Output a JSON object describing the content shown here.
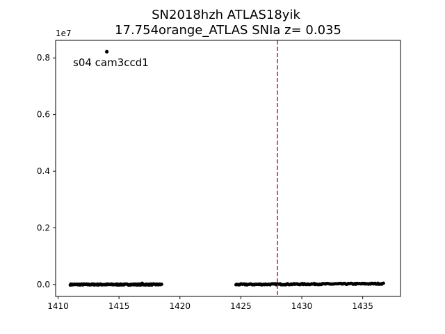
{
  "chart_data": {
    "type": "scatter",
    "title_line1": "SN2018hzh  ATLAS18yik",
    "title_line2": "17.754orange_ATLAS SNIa z= 0.035",
    "xlabel": "",
    "ylabel": "",
    "y_multiplier_label": "1e7",
    "xlim": [
      1409.8,
      1438.1
    ],
    "ylim": [
      -0.042,
      0.862
    ],
    "x_ticks": [
      1410,
      1415,
      1420,
      1425,
      1430,
      1435
    ],
    "x_tick_labels": [
      "1410",
      "1415",
      "1420",
      "1425",
      "1430",
      "1435"
    ],
    "y_ticks": [
      0.0,
      0.2,
      0.4,
      0.6,
      0.8
    ],
    "y_tick_labels": [
      "0.0",
      "0.2",
      "0.4",
      "0.6",
      "0.8"
    ],
    "annotation": "s04 cam3ccd1",
    "vline": {
      "x": 1428.0,
      "color": "#d62728",
      "style": "dashed"
    },
    "point_color": "#000000",
    "grid": false,
    "segments": [
      {
        "x_start": 1411.0,
        "x_end": 1418.5,
        "y_start": 0.0,
        "y_end": 0.0
      },
      {
        "x_start": 1424.6,
        "x_end": 1436.7,
        "y_start": 0.0,
        "y_end": 0.003
      }
    ],
    "outliers": [
      {
        "x": 1414.0,
        "y": 0.822
      },
      {
        "x": 1416.9,
        "y": 0.004
      }
    ]
  }
}
